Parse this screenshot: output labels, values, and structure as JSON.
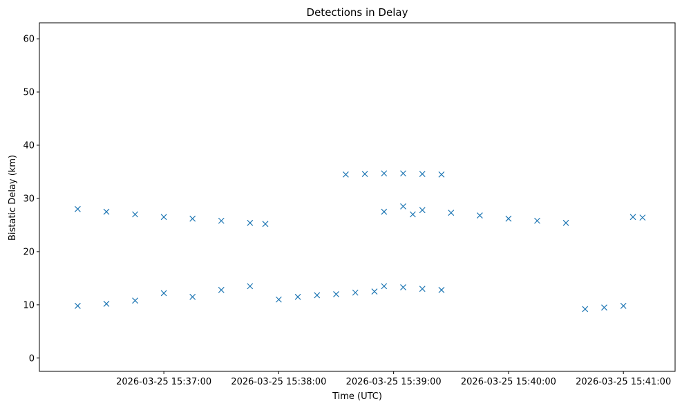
{
  "chart_data": {
    "type": "scatter",
    "title": "Detections in Delay",
    "xlabel": "Time (UTC)",
    "ylabel": "Bistatic Delay (km)",
    "x_ticks": [
      "2026-03-25 15:37:00",
      "2026-03-25 15:38:00",
      "2026-03-25 15:39:00",
      "2026-03-25 15:40:00",
      "2026-03-25 15:41:00"
    ],
    "y_ticks": [
      "0",
      "10",
      "20",
      "30",
      "40",
      "50",
      "60"
    ],
    "xlim": [
      "2026-03-25 15:35:55",
      "2026-03-25 15:41:27"
    ],
    "ylim": [
      -2.5,
      63
    ],
    "marker": "x",
    "grid": false,
    "legend": "none",
    "color": "#1f77b4",
    "series": [
      {
        "description": "tracked object A (upper diagonal band)",
        "x": [
          "15:36:15",
          "15:36:30",
          "15:36:45",
          "15:37:00",
          "15:37:15",
          "15:37:30",
          "15:37:45",
          "15:37:53"
        ],
        "y": [
          28.0,
          27.5,
          27.0,
          26.5,
          26.2,
          25.8,
          25.4,
          25.2
        ]
      },
      {
        "description": "tracked object B (lower band)",
        "x": [
          "15:36:15",
          "15:36:30",
          "15:36:45",
          "15:37:00",
          "15:37:15",
          "15:37:30",
          "15:37:45",
          "15:38:00"
        ],
        "y": [
          9.8,
          10.2,
          10.8,
          12.2,
          11.5,
          12.8,
          13.5,
          11.0
        ]
      },
      {
        "description": "tracked object C (lower diagonal band)",
        "x": [
          "15:38:10",
          "15:38:20",
          "15:38:30",
          "15:38:40",
          "15:38:50"
        ],
        "y": [
          11.5,
          11.8,
          12.0,
          12.3,
          12.5
        ]
      },
      {
        "description": "tracked object D (upper band)",
        "x": [
          "15:38:35",
          "15:38:45",
          "15:38:55",
          "15:39:05",
          "15:39:15",
          "15:39:25"
        ],
        "y": [
          34.5,
          34.6,
          34.7,
          34.7,
          34.6,
          34.5
        ]
      },
      {
        "description": "tracked object E (middle band)",
        "x": [
          "15:38:55",
          "15:39:05",
          "15:39:10"
        ],
        "y": [
          27.5,
          28.5,
          27.0
        ]
      },
      {
        "description": "tracked object F (lower band)",
        "x": [
          "15:38:55",
          "15:39:05",
          "15:39:15",
          "15:39:25"
        ],
        "y": [
          13.5,
          13.3,
          13.0,
          12.8
        ]
      },
      {
        "description": "tracked object G (upper band)",
        "x": [
          "15:39:15",
          "15:39:30",
          "15:39:45",
          "15:40:00",
          "15:40:15",
          "15:40:30"
        ],
        "y": [
          27.8,
          27.3,
          26.8,
          26.2,
          25.8,
          25.4
        ]
      },
      {
        "description": "tracked object H (lower band)",
        "x": [
          "15:40:40",
          "15:40:50",
          "15:41:00"
        ],
        "y": [
          9.2,
          9.5,
          9.8
        ]
      },
      {
        "description": "tracked object I (middle band)",
        "x": [
          "15:41:05",
          "15:41:10"
        ],
        "y": [
          26.5,
          26.4
        ]
      }
    ]
  }
}
